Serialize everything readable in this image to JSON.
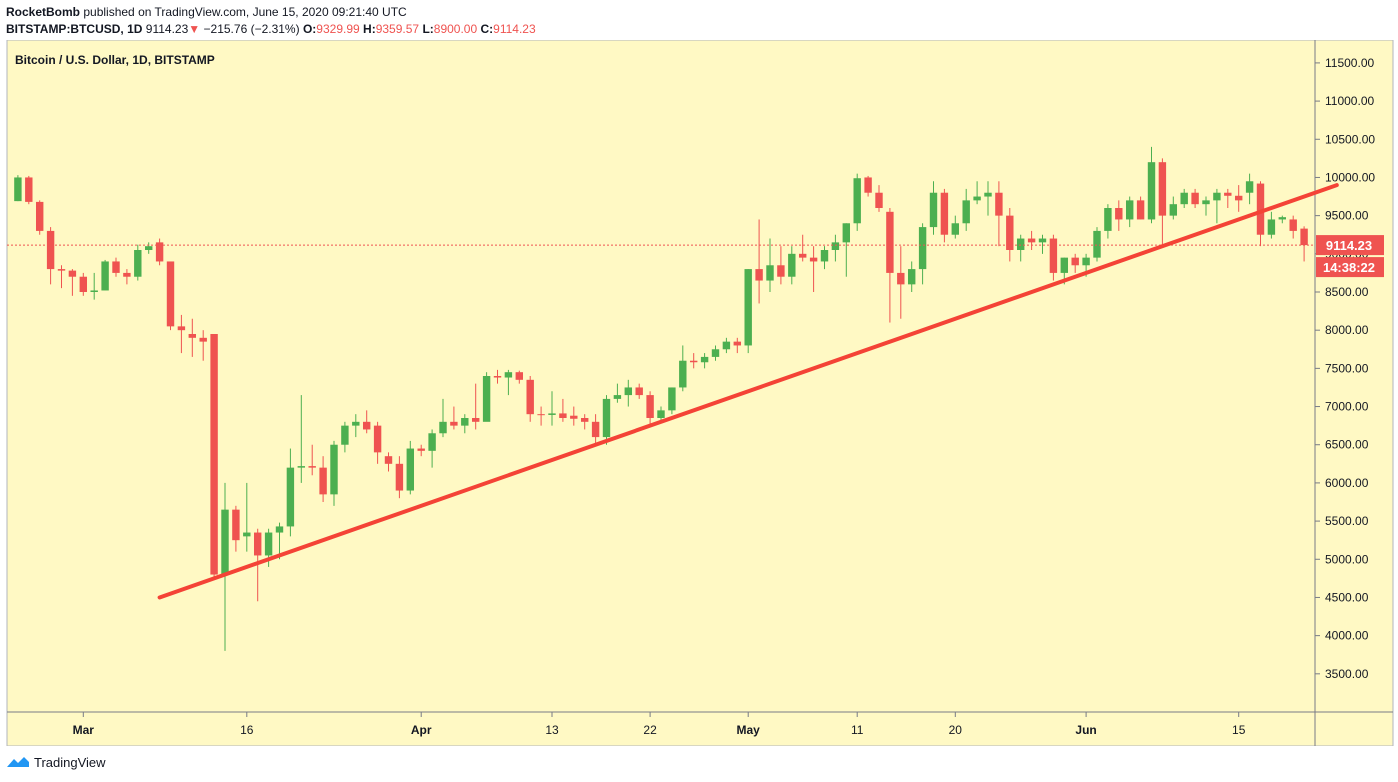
{
  "header": {
    "publisher": "RocketBomb",
    "published_text": "published on TradingView.com, June 15, 2020 09:21:40 UTC",
    "symbol": "BITSTAMP:BTCUSD, 1D",
    "last": "9114.23",
    "change": "−215.76 (−2.31%)",
    "o_label": "O:",
    "o_val": "9329.99",
    "h_label": "H:",
    "h_val": "9359.57",
    "l_label": "L:",
    "l_val": "8900.00",
    "c_label": "C:",
    "c_val": "9114.23"
  },
  "footer": {
    "brand": "TradingView"
  },
  "colors": {
    "background": "#fff9c4",
    "up": "#4caf50",
    "down": "#ef5350",
    "trendline": "#f44336",
    "price_line": "#ef5350"
  },
  "chart_data": {
    "type": "candlestick",
    "title": "Bitcoin / U.S. Dollar, 1D, BITSTAMP",
    "ylim": [
      3000,
      11800
    ],
    "y_ticks": [
      3500,
      4000,
      4500,
      5000,
      5500,
      6000,
      6500,
      7000,
      7500,
      8000,
      8500,
      9000,
      9500,
      10000,
      10500,
      11000,
      11500
    ],
    "y_tick_labels": [
      "3500.00",
      "4000.00",
      "4500.00",
      "5000.00",
      "5500.00",
      "6000.00",
      "6500.00",
      "7000.00",
      "7500.00",
      "8000.00",
      "8500.00",
      "9000.00",
      "9500.00",
      "10000.00",
      "10500.00",
      "11000.00",
      "11500.00"
    ],
    "start_date": "2020-02-23",
    "end_date": "2020-06-22",
    "x_ticks": [
      {
        "date": "2020-03-01",
        "label": "Mar"
      },
      {
        "date": "2020-03-16",
        "label": "16"
      },
      {
        "date": "2020-04-01",
        "label": "Apr"
      },
      {
        "date": "2020-04-13",
        "label": "13"
      },
      {
        "date": "2020-04-22",
        "label": "22"
      },
      {
        "date": "2020-05-01",
        "label": "May"
      },
      {
        "date": "2020-05-11",
        "label": "11"
      },
      {
        "date": "2020-05-20",
        "label": "20"
      },
      {
        "date": "2020-06-01",
        "label": "Jun"
      },
      {
        "date": "2020-06-15",
        "label": "15"
      }
    ],
    "last_price": 9114.23,
    "last_price_label": "9114.23",
    "countdown_label": "14:38:22",
    "trendline": {
      "start": {
        "date": "2020-03-08",
        "price": 4500
      },
      "end": {
        "date": "2020-06-24",
        "price": 9900
      }
    },
    "candles": [
      {
        "date": "2020-02-24",
        "o": 9690,
        "h": 10030,
        "l": 9690,
        "c": 10000
      },
      {
        "date": "2020-02-25",
        "o": 10000,
        "h": 10020,
        "l": 9650,
        "c": 9680
      },
      {
        "date": "2020-02-26",
        "o": 9680,
        "h": 9700,
        "l": 9250,
        "c": 9300
      },
      {
        "date": "2020-02-27",
        "o": 9300,
        "h": 9350,
        "l": 8600,
        "c": 8800
      },
      {
        "date": "2020-02-28",
        "o": 8800,
        "h": 8850,
        "l": 8550,
        "c": 8780
      },
      {
        "date": "2020-02-29",
        "o": 8780,
        "h": 8800,
        "l": 8450,
        "c": 8700
      },
      {
        "date": "2020-03-01",
        "o": 8700,
        "h": 8750,
        "l": 8450,
        "c": 8500
      },
      {
        "date": "2020-03-02",
        "o": 8500,
        "h": 8750,
        "l": 8400,
        "c": 8520
      },
      {
        "date": "2020-03-03",
        "o": 8520,
        "h": 8920,
        "l": 8520,
        "c": 8900
      },
      {
        "date": "2020-03-04",
        "o": 8900,
        "h": 8950,
        "l": 8700,
        "c": 8750
      },
      {
        "date": "2020-03-05",
        "o": 8750,
        "h": 8800,
        "l": 8600,
        "c": 8700
      },
      {
        "date": "2020-03-06",
        "o": 8700,
        "h": 9120,
        "l": 8650,
        "c": 9050
      },
      {
        "date": "2020-03-07",
        "o": 9050,
        "h": 9150,
        "l": 9000,
        "c": 9100
      },
      {
        "date": "2020-03-08",
        "o": 9150,
        "h": 9200,
        "l": 8850,
        "c": 8900
      },
      {
        "date": "2020-03-09",
        "o": 8900,
        "h": 8900,
        "l": 8000,
        "c": 8050
      },
      {
        "date": "2020-03-10",
        "o": 8050,
        "h": 8200,
        "l": 7700,
        "c": 8000
      },
      {
        "date": "2020-03-11",
        "o": 7950,
        "h": 8150,
        "l": 7650,
        "c": 7900
      },
      {
        "date": "2020-03-12",
        "o": 7900,
        "h": 8000,
        "l": 7600,
        "c": 7850
      },
      {
        "date": "2020-03-13",
        "o": 7950,
        "h": 7950,
        "l": 4750,
        "c": 4800
      },
      {
        "date": "2020-03-14",
        "o": 4800,
        "h": 6000,
        "l": 3800,
        "c": 5650
      },
      {
        "date": "2020-03-15",
        "o": 5650,
        "h": 5700,
        "l": 5100,
        "c": 5250
      },
      {
        "date": "2020-03-16",
        "o": 5300,
        "h": 6000,
        "l": 5100,
        "c": 5350
      },
      {
        "date": "2020-03-17",
        "o": 5350,
        "h": 5400,
        "l": 4450,
        "c": 5050
      },
      {
        "date": "2020-03-18",
        "o": 5050,
        "h": 5400,
        "l": 4900,
        "c": 5350
      },
      {
        "date": "2020-03-19",
        "o": 5350,
        "h": 5480,
        "l": 5000,
        "c": 5430
      },
      {
        "date": "2020-03-20",
        "o": 5430,
        "h": 6450,
        "l": 5300,
        "c": 6200
      },
      {
        "date": "2020-03-21",
        "o": 6200,
        "h": 7150,
        "l": 6000,
        "c": 6220
      },
      {
        "date": "2020-03-22",
        "o": 6220,
        "h": 6500,
        "l": 6100,
        "c": 6200
      },
      {
        "date": "2020-03-23",
        "o": 6200,
        "h": 6350,
        "l": 5750,
        "c": 5850
      },
      {
        "date": "2020-03-24",
        "o": 5850,
        "h": 6550,
        "l": 5700,
        "c": 6500
      },
      {
        "date": "2020-03-25",
        "o": 6500,
        "h": 6800,
        "l": 6400,
        "c": 6750
      },
      {
        "date": "2020-03-26",
        "o": 6750,
        "h": 6900,
        "l": 6600,
        "c": 6800
      },
      {
        "date": "2020-03-27",
        "o": 6800,
        "h": 6950,
        "l": 6650,
        "c": 6700
      },
      {
        "date": "2020-03-28",
        "o": 6750,
        "h": 6800,
        "l": 6250,
        "c": 6400
      },
      {
        "date": "2020-03-29",
        "o": 6350,
        "h": 6400,
        "l": 6150,
        "c": 6250
      },
      {
        "date": "2020-03-30",
        "o": 6250,
        "h": 6350,
        "l": 5800,
        "c": 5900
      },
      {
        "date": "2020-03-31",
        "o": 5900,
        "h": 6550,
        "l": 5850,
        "c": 6450
      },
      {
        "date": "2020-04-01",
        "o": 6450,
        "h": 6500,
        "l": 6350,
        "c": 6420
      },
      {
        "date": "2020-04-02",
        "o": 6420,
        "h": 6700,
        "l": 6200,
        "c": 6650
      },
      {
        "date": "2020-04-03",
        "o": 6650,
        "h": 7100,
        "l": 6600,
        "c": 6800
      },
      {
        "date": "2020-04-04",
        "o": 6800,
        "h": 7000,
        "l": 6700,
        "c": 6750
      },
      {
        "date": "2020-04-05",
        "o": 6750,
        "h": 6900,
        "l": 6650,
        "c": 6850
      },
      {
        "date": "2020-04-06",
        "o": 6850,
        "h": 7300,
        "l": 6700,
        "c": 6800
      },
      {
        "date": "2020-04-07",
        "o": 6800,
        "h": 7450,
        "l": 6850,
        "c": 7400
      },
      {
        "date": "2020-04-08",
        "o": 7400,
        "h": 7480,
        "l": 7300,
        "c": 7380
      },
      {
        "date": "2020-04-09",
        "o": 7380,
        "h": 7480,
        "l": 7150,
        "c": 7450
      },
      {
        "date": "2020-04-10",
        "o": 7450,
        "h": 7470,
        "l": 7300,
        "c": 7350
      },
      {
        "date": "2020-04-11",
        "o": 7350,
        "h": 7400,
        "l": 6800,
        "c": 6900
      },
      {
        "date": "2020-04-12",
        "o": 6900,
        "h": 7000,
        "l": 6750,
        "c": 6890
      },
      {
        "date": "2020-04-13",
        "o": 6890,
        "h": 7200,
        "l": 6750,
        "c": 6910
      },
      {
        "date": "2020-04-14",
        "o": 6910,
        "h": 7100,
        "l": 6800,
        "c": 6850
      },
      {
        "date": "2020-04-15",
        "o": 6880,
        "h": 7000,
        "l": 6750,
        "c": 6840
      },
      {
        "date": "2020-04-16",
        "o": 6850,
        "h": 6900,
        "l": 6700,
        "c": 6800
      },
      {
        "date": "2020-04-17",
        "o": 6800,
        "h": 6900,
        "l": 6500,
        "c": 6600
      },
      {
        "date": "2020-04-18",
        "o": 6600,
        "h": 7150,
        "l": 6500,
        "c": 7100
      },
      {
        "date": "2020-04-19",
        "o": 7100,
        "h": 7300,
        "l": 7050,
        "c": 7150
      },
      {
        "date": "2020-04-20",
        "o": 7150,
        "h": 7350,
        "l": 7000,
        "c": 7250
      },
      {
        "date": "2020-04-21",
        "o": 7250,
        "h": 7300,
        "l": 7100,
        "c": 7150
      },
      {
        "date": "2020-04-22",
        "o": 7150,
        "h": 7200,
        "l": 6750,
        "c": 6850
      },
      {
        "date": "2020-04-23",
        "o": 6850,
        "h": 7000,
        "l": 6800,
        "c": 6950
      },
      {
        "date": "2020-04-24",
        "o": 6950,
        "h": 7250,
        "l": 6900,
        "c": 7250
      },
      {
        "date": "2020-04-25",
        "o": 7250,
        "h": 7800,
        "l": 7200,
        "c": 7600
      },
      {
        "date": "2020-04-26",
        "o": 7600,
        "h": 7700,
        "l": 7500,
        "c": 7580
      },
      {
        "date": "2020-04-27",
        "o": 7580,
        "h": 7700,
        "l": 7500,
        "c": 7650
      },
      {
        "date": "2020-04-28",
        "o": 7650,
        "h": 7800,
        "l": 7600,
        "c": 7750
      },
      {
        "date": "2020-04-29",
        "o": 7750,
        "h": 7900,
        "l": 7700,
        "c": 7850
      },
      {
        "date": "2020-04-30",
        "o": 7850,
        "h": 7900,
        "l": 7700,
        "c": 7800
      },
      {
        "date": "2020-05-01",
        "o": 7800,
        "h": 8800,
        "l": 7700,
        "c": 8800
      },
      {
        "date": "2020-05-02",
        "o": 8800,
        "h": 9450,
        "l": 8350,
        "c": 8650
      },
      {
        "date": "2020-05-03",
        "o": 8650,
        "h": 9200,
        "l": 8500,
        "c": 8850
      },
      {
        "date": "2020-05-04",
        "o": 8850,
        "h": 9100,
        "l": 8600,
        "c": 8700
      },
      {
        "date": "2020-05-05",
        "o": 8700,
        "h": 9100,
        "l": 8600,
        "c": 9000
      },
      {
        "date": "2020-05-06",
        "o": 9000,
        "h": 9250,
        "l": 8900,
        "c": 8950
      },
      {
        "date": "2020-05-07",
        "o": 8950,
        "h": 9100,
        "l": 8500,
        "c": 8900
      },
      {
        "date": "2020-05-08",
        "o": 8900,
        "h": 9100,
        "l": 8800,
        "c": 9050
      },
      {
        "date": "2020-05-09",
        "o": 9050,
        "h": 9250,
        "l": 8900,
        "c": 9150
      },
      {
        "date": "2020-05-10",
        "o": 9150,
        "h": 9400,
        "l": 8700,
        "c": 9400
      },
      {
        "date": "2020-05-11",
        "o": 9400,
        "h": 10050,
        "l": 9300,
        "c": 9990
      },
      {
        "date": "2020-05-12",
        "o": 10000,
        "h": 10020,
        "l": 9750,
        "c": 9800
      },
      {
        "date": "2020-05-13",
        "o": 9800,
        "h": 9900,
        "l": 9550,
        "c": 9600
      },
      {
        "date": "2020-05-14",
        "o": 9550,
        "h": 9600,
        "l": 8100,
        "c": 8750
      },
      {
        "date": "2020-05-15",
        "o": 8750,
        "h": 9100,
        "l": 8150,
        "c": 8600
      },
      {
        "date": "2020-05-16",
        "o": 8600,
        "h": 8900,
        "l": 8500,
        "c": 8800
      },
      {
        "date": "2020-05-17",
        "o": 8800,
        "h": 9400,
        "l": 8600,
        "c": 9350
      },
      {
        "date": "2020-05-18",
        "o": 9350,
        "h": 9950,
        "l": 9250,
        "c": 9800
      },
      {
        "date": "2020-05-19",
        "o": 9800,
        "h": 9850,
        "l": 9150,
        "c": 9250
      },
      {
        "date": "2020-05-20",
        "o": 9250,
        "h": 9500,
        "l": 9200,
        "c": 9400
      },
      {
        "date": "2020-05-21",
        "o": 9400,
        "h": 9850,
        "l": 9300,
        "c": 9700
      },
      {
        "date": "2020-05-22",
        "o": 9700,
        "h": 9950,
        "l": 9650,
        "c": 9750
      },
      {
        "date": "2020-05-23",
        "o": 9750,
        "h": 9950,
        "l": 9500,
        "c": 9800
      },
      {
        "date": "2020-05-24",
        "o": 9800,
        "h": 9950,
        "l": 9100,
        "c": 9500
      },
      {
        "date": "2020-05-25",
        "o": 9500,
        "h": 9600,
        "l": 8900,
        "c": 9050
      },
      {
        "date": "2020-05-26",
        "o": 9050,
        "h": 9250,
        "l": 8900,
        "c": 9200
      },
      {
        "date": "2020-05-27",
        "o": 9200,
        "h": 9300,
        "l": 9050,
        "c": 9150
      },
      {
        "date": "2020-05-28",
        "o": 9150,
        "h": 9250,
        "l": 9000,
        "c": 9200
      },
      {
        "date": "2020-05-29",
        "o": 9200,
        "h": 9250,
        "l": 8650,
        "c": 8750
      },
      {
        "date": "2020-05-30",
        "o": 8750,
        "h": 8950,
        "l": 8600,
        "c": 8950
      },
      {
        "date": "2020-05-31",
        "o": 8950,
        "h": 9000,
        "l": 8750,
        "c": 8850
      },
      {
        "date": "2020-06-01",
        "o": 8850,
        "h": 9000,
        "l": 8700,
        "c": 8950
      },
      {
        "date": "2020-06-02",
        "o": 8950,
        "h": 9350,
        "l": 8900,
        "c": 9300
      },
      {
        "date": "2020-06-03",
        "o": 9300,
        "h": 9650,
        "l": 9200,
        "c": 9600
      },
      {
        "date": "2020-06-04",
        "o": 9600,
        "h": 9700,
        "l": 9300,
        "c": 9450
      },
      {
        "date": "2020-06-05",
        "o": 9450,
        "h": 9750,
        "l": 9350,
        "c": 9700
      },
      {
        "date": "2020-06-06",
        "o": 9700,
        "h": 9750,
        "l": 9450,
        "c": 9450
      },
      {
        "date": "2020-06-07",
        "o": 9450,
        "h": 10400,
        "l": 9400,
        "c": 10200
      },
      {
        "date": "2020-06-08",
        "o": 10200,
        "h": 10250,
        "l": 9100,
        "c": 9500
      },
      {
        "date": "2020-06-09",
        "o": 9500,
        "h": 9750,
        "l": 9450,
        "c": 9650
      },
      {
        "date": "2020-06-10",
        "o": 9650,
        "h": 9850,
        "l": 9600,
        "c": 9800
      },
      {
        "date": "2020-06-11",
        "o": 9800,
        "h": 9850,
        "l": 9600,
        "c": 9650
      },
      {
        "date": "2020-06-12",
        "o": 9650,
        "h": 9750,
        "l": 9500,
        "c": 9700
      },
      {
        "date": "2020-06-13",
        "o": 9700,
        "h": 9850,
        "l": 9400,
        "c": 9800
      },
      {
        "date": "2020-06-14",
        "o": 9800,
        "h": 9850,
        "l": 9600,
        "c": 9760
      },
      {
        "date": "2020-06-15",
        "o": 9760,
        "h": 9900,
        "l": 9550,
        "c": 9700
      },
      {
        "date": "2020-06-16",
        "o": 9800,
        "h": 10050,
        "l": 9650,
        "c": 9950
      },
      {
        "date": "2020-06-17",
        "o": 9920,
        "h": 9950,
        "l": 9100,
        "c": 9250
      },
      {
        "date": "2020-06-18",
        "o": 9250,
        "h": 9550,
        "l": 9200,
        "c": 9450
      },
      {
        "date": "2020-06-19",
        "o": 9450,
        "h": 9500,
        "l": 9400,
        "c": 9480
      },
      {
        "date": "2020-06-20",
        "o": 9450,
        "h": 9500,
        "l": 9200,
        "c": 9300
      },
      {
        "date": "2020-06-21",
        "o": 9330,
        "h": 9360,
        "l": 8900,
        "c": 9114
      }
    ]
  }
}
